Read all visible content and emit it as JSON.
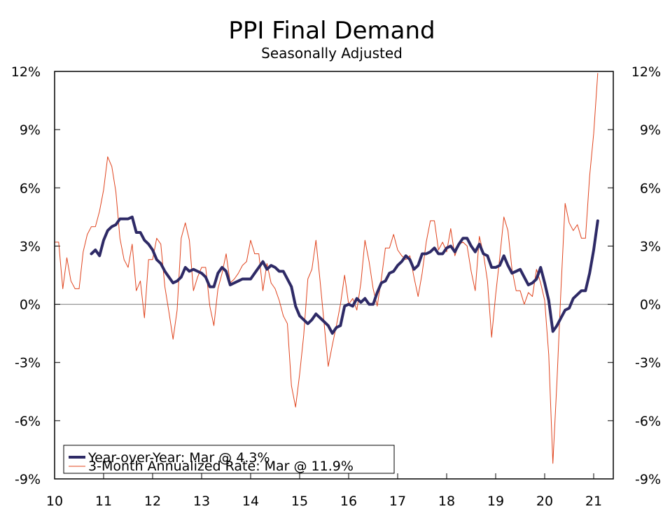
{
  "chart_data": {
    "type": "line",
    "title": "PPI Final Demand",
    "subtitle": "Seasonally Adjusted",
    "xlabel": "",
    "ylabel": "",
    "x_start": 2010.0,
    "x_step": 0.0833333,
    "xlim": [
      2010,
      2021.4
    ],
    "ylim": [
      -9,
      12
    ],
    "y_ticks": [
      12,
      9,
      6,
      3,
      0,
      -3,
      -6,
      -9
    ],
    "y_tick_labels": [
      "12%",
      "9%",
      "6%",
      "3%",
      "0%",
      "-3%",
      "-6%",
      "-9%"
    ],
    "x_ticks": [
      2010,
      2011,
      2012,
      2013,
      2014,
      2015,
      2016,
      2017,
      2018,
      2019,
      2020,
      2021
    ],
    "x_tick_labels": [
      "10",
      "11",
      "12",
      "13",
      "14",
      "15",
      "16",
      "17",
      "18",
      "19",
      "20",
      "21"
    ],
    "legend_position": "bottom-left",
    "series": [
      {
        "name": "Year-over-Year: Mar @ 4.3%",
        "color": "#2e2a66",
        "style": "thick",
        "x_start": 2010.75,
        "values": [
          2.6,
          2.8,
          2.5,
          3.3,
          3.8,
          4.0,
          4.1,
          4.4,
          4.4,
          4.4,
          4.5,
          3.7,
          3.7,
          3.3,
          3.1,
          2.8,
          2.3,
          2.1,
          1.7,
          1.4,
          1.1,
          1.2,
          1.4,
          1.9,
          1.7,
          1.8,
          1.7,
          1.6,
          1.4,
          0.9,
          0.9,
          1.6,
          1.9,
          1.7,
          1.0,
          1.1,
          1.2,
          1.3,
          1.3,
          1.3,
          1.6,
          1.9,
          2.2,
          1.8,
          2.0,
          1.9,
          1.7,
          1.7,
          1.3,
          0.9,
          -0.1,
          -0.6,
          -0.8,
          -1.0,
          -0.8,
          -0.5,
          -0.7,
          -0.9,
          -1.1,
          -1.5,
          -1.2,
          -1.1,
          -0.1,
          0.0,
          -0.1,
          0.3,
          0.1,
          0.3,
          0.0,
          0.0,
          0.6,
          1.1,
          1.2,
          1.6,
          1.7,
          2.0,
          2.2,
          2.5,
          2.3,
          1.8,
          2.0,
          2.6,
          2.6,
          2.7,
          2.9,
          2.6,
          2.6,
          2.9,
          3.0,
          2.7,
          3.1,
          3.4,
          3.4,
          3.0,
          2.7,
          3.1,
          2.6,
          2.5,
          1.9,
          1.9,
          2.0,
          2.5,
          2.0,
          1.6,
          1.7,
          1.8,
          1.4,
          1.0,
          1.1,
          1.3,
          1.9,
          1.1,
          0.2,
          -1.4,
          -1.1,
          -0.7,
          -0.3,
          -0.2,
          0.3,
          0.5,
          0.7,
          0.7,
          1.6,
          2.8,
          4.3
        ]
      },
      {
        "name": "3-Month Annualized Rate: Mar @ 11.9%",
        "color": "#e0441e",
        "style": "thin",
        "x_start": 2010.0,
        "values": [
          3.2,
          3.2,
          0.8,
          2.4,
          1.2,
          0.8,
          0.8,
          2.7,
          3.6,
          4.0,
          4.0,
          4.8,
          5.9,
          7.6,
          7.1,
          5.8,
          3.4,
          2.3,
          1.9,
          3.1,
          0.7,
          1.2,
          -0.7,
          2.3,
          2.3,
          3.4,
          3.1,
          0.9,
          -0.4,
          -1.8,
          -0.3,
          3.4,
          4.2,
          3.3,
          0.7,
          1.4,
          1.9,
          1.9,
          -0.1,
          -1.1,
          0.8,
          1.6,
          2.6,
          1.1,
          1.3,
          1.6,
          2.0,
          2.2,
          3.3,
          2.6,
          2.6,
          0.7,
          2.1,
          1.1,
          0.8,
          0.2,
          -0.6,
          -1.0,
          -4.2,
          -5.3,
          -3.6,
          -1.6,
          1.3,
          1.8,
          3.3,
          1.2,
          -1.0,
          -3.2,
          -2.1,
          -1.1,
          0.0,
          1.5,
          0.0,
          0.3,
          -0.3,
          1.1,
          3.3,
          2.2,
          0.8,
          -0.1,
          1.3,
          2.9,
          2.9,
          3.6,
          2.8,
          2.5,
          2.3,
          2.5,
          1.4,
          0.4,
          1.6,
          3.2,
          4.3,
          4.3,
          2.8,
          3.2,
          2.7,
          3.9,
          2.5,
          3.1,
          3.2,
          3.0,
          1.7,
          0.7,
          3.5,
          2.6,
          1.2,
          -1.7,
          0.5,
          2.4,
          4.5,
          3.8,
          1.8,
          0.7,
          0.7,
          0.0,
          0.6,
          0.4,
          1.8,
          1.1,
          0.2,
          -2.6,
          -8.2,
          -4.0,
          0.8,
          5.2,
          4.2,
          3.8,
          4.1,
          3.4,
          3.4,
          6.6,
          8.8,
          11.9
        ]
      }
    ]
  }
}
